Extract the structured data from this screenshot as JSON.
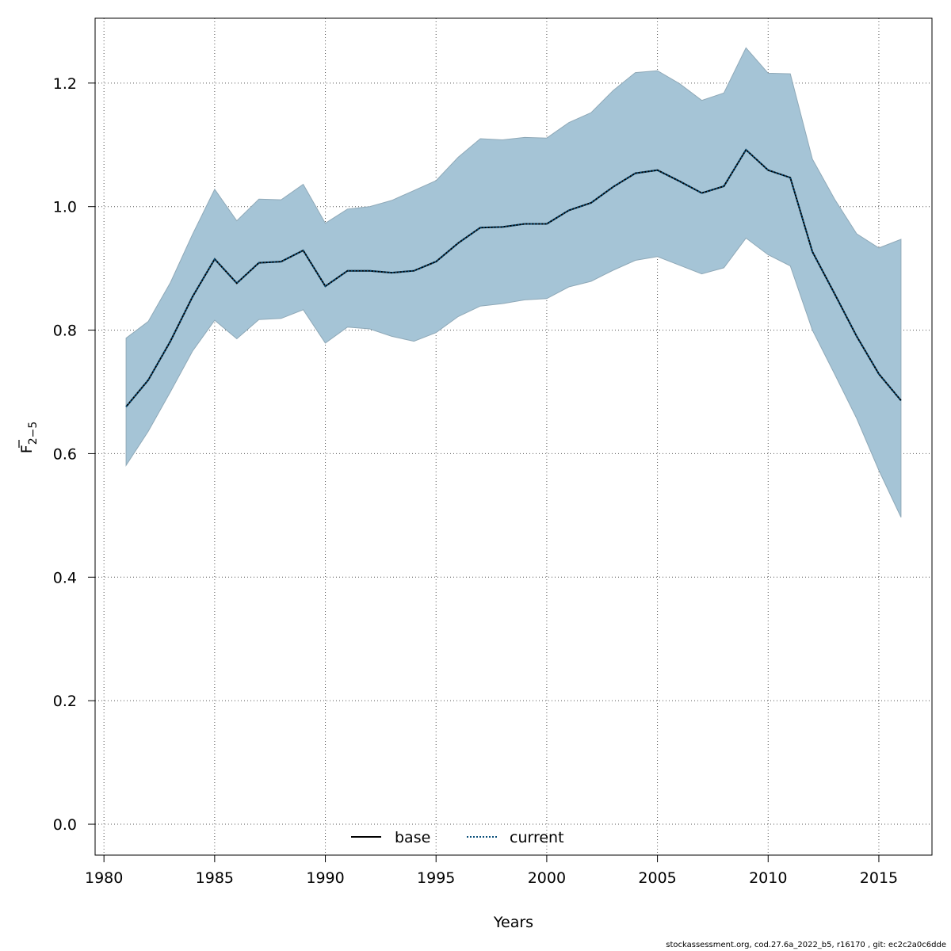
{
  "chart_data": {
    "type": "area",
    "xlabel": "Years",
    "ylabel_main": "F",
    "ylabel_sub": "2−5",
    "xlim": [
      1979.6,
      2017.4
    ],
    "ylim": [
      -0.05,
      1.305
    ],
    "x_ticks": [
      "1980",
      "1985",
      "1990",
      "1995",
      "2000",
      "2005",
      "2010",
      "2015"
    ],
    "y_ticks": [
      "0.0",
      "0.2",
      "0.4",
      "0.6",
      "0.8",
      "1.0",
      "1.2"
    ],
    "grid": true,
    "years": [
      1981,
      1982,
      1983,
      1984,
      1985,
      1986,
      1987,
      1988,
      1989,
      1990,
      1991,
      1992,
      1993,
      1994,
      1995,
      1996,
      1997,
      1998,
      1999,
      2000,
      2001,
      2002,
      2003,
      2004,
      2005,
      2006,
      2007,
      2008,
      2009,
      2010,
      2011,
      2012,
      2013,
      2014,
      2015,
      2016
    ],
    "upper": [
      0.787,
      0.814,
      0.877,
      0.955,
      1.028,
      0.977,
      1.012,
      1.011,
      1.036,
      0.973,
      0.996,
      1.0,
      1.01,
      1.026,
      1.042,
      1.08,
      1.11,
      1.108,
      1.112,
      1.111,
      1.136,
      1.152,
      1.188,
      1.217,
      1.22,
      1.199,
      1.172,
      1.184,
      1.257,
      1.216,
      1.215,
      1.077,
      1.012,
      0.956,
      0.933,
      0.947
    ],
    "lower": [
      0.581,
      0.636,
      0.7,
      0.766,
      0.816,
      0.786,
      0.817,
      0.819,
      0.833,
      0.779,
      0.805,
      0.802,
      0.79,
      0.782,
      0.796,
      0.822,
      0.839,
      0.843,
      0.849,
      0.851,
      0.87,
      0.879,
      0.897,
      0.913,
      0.919,
      0.905,
      0.891,
      0.901,
      0.949,
      0.922,
      0.904,
      0.8,
      0.729,
      0.657,
      0.573,
      0.497
    ],
    "series": [
      {
        "name": "base",
        "values": [
          0.676,
          0.719,
          0.782,
          0.854,
          0.915,
          0.876,
          0.909,
          0.911,
          0.929,
          0.871,
          0.896,
          0.896,
          0.893,
          0.896,
          0.911,
          0.941,
          0.966,
          0.967,
          0.972,
          0.972,
          0.994,
          1.006,
          1.032,
          1.054,
          1.059,
          1.041,
          1.022,
          1.033,
          1.092,
          1.059,
          1.047,
          0.927,
          0.859,
          0.79,
          0.729,
          0.686
        ]
      },
      {
        "name": "current",
        "values": [
          0.676,
          0.719,
          0.782,
          0.854,
          0.915,
          0.876,
          0.909,
          0.911,
          0.929,
          0.871,
          0.896,
          0.896,
          0.893,
          0.896,
          0.911,
          0.941,
          0.966,
          0.967,
          0.972,
          0.972,
          0.994,
          1.006,
          1.032,
          1.054,
          1.059,
          1.041,
          1.022,
          1.033,
          1.092,
          1.059,
          1.047,
          0.927,
          0.859,
          0.79,
          0.729,
          0.686
        ]
      }
    ],
    "legend_position": "bottom-center",
    "colors": {
      "band_fill": "#a5c4d6",
      "band_stroke": "#8fa9b8",
      "base_line": "#000000",
      "current_line": "#0a4f7a",
      "grid": "#555555"
    }
  },
  "footer": "stockassessment.org, cod.27.6a_2022_b5, r16170 , git: ec2c2a0c6dde"
}
